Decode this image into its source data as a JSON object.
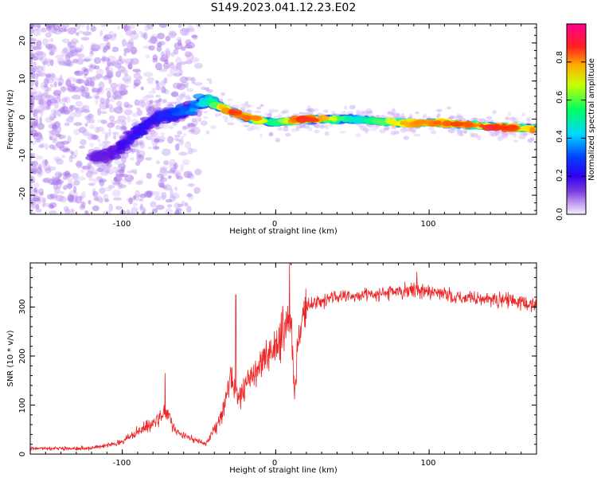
{
  "figure_title": "S149.2023.041.12.23.E02",
  "colors": {
    "snr_line": "#ee2222",
    "frame": "#000000",
    "background": "#ffffff"
  },
  "chart_data": [
    {
      "type": "heatmap",
      "name": "spectrogram",
      "xlabel": "Height of straight line (km)",
      "ylabel": "Frequency (Hz)",
      "xlim": [
        -160,
        170
      ],
      "ylim": [
        -25,
        25
      ],
      "xticks": [
        -100,
        0,
        100
      ],
      "yticks": [
        -20,
        -10,
        0,
        10,
        20
      ],
      "colorbar": {
        "label": "Normalized spectral amplitude",
        "range": [
          0.0,
          1.0
        ],
        "ticks": [
          0.0,
          0.2,
          0.4,
          0.6,
          0.8
        ],
        "colormap": [
          "#f2e6ff",
          "#c39ff2",
          "#7a2bd8",
          "#4000f0",
          "#0040ff",
          "#00d8ff",
          "#00ff80",
          "#ffff00",
          "#ff4000",
          "#ff0080"
        ]
      },
      "ridge": [
        {
          "x": -110,
          "freq": -10,
          "amp": 0.25
        },
        {
          "x": -95,
          "freq": -5,
          "amp": 0.35
        },
        {
          "x": -80,
          "freq": 0,
          "amp": 0.35
        },
        {
          "x": -60,
          "freq": 2,
          "amp": 0.45
        },
        {
          "x": -45,
          "freq": 5,
          "amp": 0.55
        },
        {
          "x": -30,
          "freq": 2,
          "amp": 0.85
        },
        {
          "x": -15,
          "freq": 0,
          "amp": 0.8
        },
        {
          "x": 0,
          "freq": -1,
          "amp": 0.6
        },
        {
          "x": 20,
          "freq": 0,
          "amp": 0.9
        },
        {
          "x": 50,
          "freq": 0,
          "amp": 0.55
        },
        {
          "x": 80,
          "freq": -1,
          "amp": 0.75
        },
        {
          "x": 110,
          "freq": -1,
          "amp": 0.8
        },
        {
          "x": 140,
          "freq": -2,
          "amp": 0.85
        },
        {
          "x": 165,
          "freq": -2.5,
          "amp": 0.8
        }
      ]
    },
    {
      "type": "line",
      "name": "snr",
      "xlabel": "Height of straight line (km)",
      "ylabel": "SNR (10 * v/v)",
      "xlim": [
        -160,
        170
      ],
      "ylim": [
        0,
        390
      ],
      "xticks": [
        -100,
        0,
        100
      ],
      "yticks": [
        0,
        100,
        200,
        300
      ],
      "envelope": {
        "x": [
          -160,
          -120,
          -100,
          -85,
          -75,
          -72,
          -65,
          -55,
          -45,
          -35,
          -30,
          -25,
          -20,
          -10,
          0,
          5,
          8,
          10,
          12,
          15,
          20,
          30,
          40,
          60,
          90,
          120,
          150,
          170
        ],
        "y": [
          12,
          12,
          25,
          55,
          75,
          90,
          45,
          30,
          22,
          80,
          150,
          120,
          140,
          185,
          220,
          250,
          280,
          290,
          120,
          240,
          300,
          315,
          320,
          325,
          335,
          320,
          315,
          305
        ]
      },
      "spikes": [
        {
          "x": -72,
          "y": 165
        },
        {
          "x": -26,
          "y": 325
        },
        {
          "x": 9,
          "y": 390
        },
        {
          "x": 92,
          "y": 372
        }
      ]
    }
  ],
  "top_plot": {
    "title": "S149.2023.041.12.23.E02",
    "x_tick_labels": [
      "-100",
      "0",
      "100"
    ],
    "y_tick_labels": [
      "-20",
      "-10",
      "0",
      "10",
      "20"
    ],
    "xlabel": "Height of straight line (km)",
    "ylabel": "Frequency (Hz)"
  },
  "colorbar": {
    "label": "Normalized spectral amplitude",
    "tick_labels": [
      "0.0",
      "0.2",
      "0.4",
      "0.6",
      "0.8"
    ]
  },
  "bottom_plot": {
    "x_tick_labels": [
      "-100",
      "0",
      "100"
    ],
    "y_tick_labels": [
      "0",
      "100",
      "200",
      "300"
    ],
    "xlabel": "Height of straight line (km)",
    "ylabel": "SNR (10 * v/v)"
  }
}
